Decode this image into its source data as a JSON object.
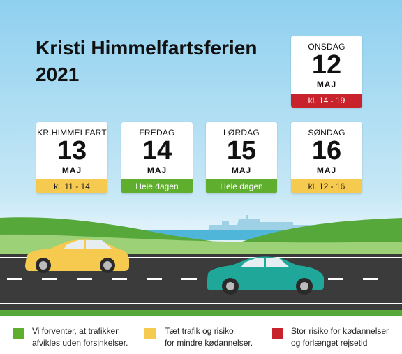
{
  "title_line1": "Kristi Himmelfartsferien",
  "title_line2": "2021",
  "cards": [
    {
      "day": "ONSDAG",
      "num": "12",
      "month": "MAJ",
      "band": "kl. 14 - 19",
      "band_color": "#c8232c"
    },
    {
      "day": "KR.HIMMELFART",
      "num": "13",
      "month": "MAJ",
      "band": "kl. 11 - 14",
      "band_color": "#f6c94f"
    },
    {
      "day": "FREDAG",
      "num": "14",
      "month": "MAJ",
      "band": "Hele dagen",
      "band_color": "#5fae2e"
    },
    {
      "day": "LØRDAG",
      "num": "15",
      "month": "MAJ",
      "band": "Hele dagen",
      "band_color": "#5fae2e"
    },
    {
      "day": "SØNDAG",
      "num": "16",
      "month": "MAJ",
      "band": "kl. 12 - 16",
      "band_color": "#f6c94f"
    }
  ],
  "legend": [
    {
      "color": "#5fae2e",
      "line1": "Vi forventer, at trafikken",
      "line2": "afvikles uden forsinkelser."
    },
    {
      "color": "#f6c94f",
      "line1": "Tæt trafik og risiko",
      "line2": "for mindre kødannelser."
    },
    {
      "color": "#c8232c",
      "line1": "Stor risiko for kødannelser",
      "line2": "og forlænget rejsetid"
    }
  ],
  "illustration": {
    "car_left_color": "#f6c94f",
    "car_right_color": "#1fa89a",
    "ship_icon": "ferry-ship-icon"
  }
}
